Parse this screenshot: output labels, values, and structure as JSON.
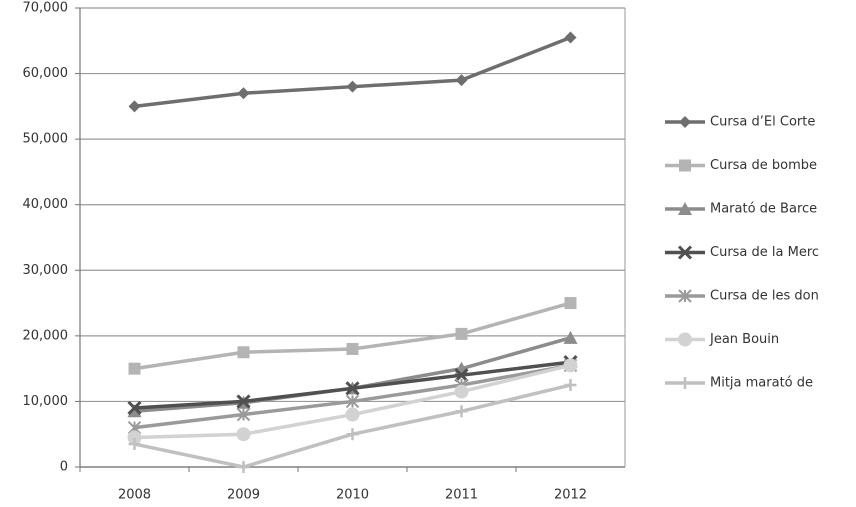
{
  "chart_data": {
    "type": "line",
    "categories": [
      "2008",
      "2009",
      "2010",
      "2011",
      "2012"
    ],
    "series": [
      {
        "name": "Cursa d’El Corte",
        "color": "#6e6e6e",
        "marker": "diamond",
        "values": [
          55000,
          57000,
          58000,
          59000,
          65500
        ]
      },
      {
        "name": "Cursa de bombe",
        "color": "#b4b4b4",
        "marker": "square",
        "values": [
          15000,
          17500,
          18000,
          20300,
          25000
        ]
      },
      {
        "name": "Marató de Barce",
        "color": "#8c8c8c",
        "marker": "triangle",
        "values": [
          8500,
          9800,
          12000,
          15000,
          19700
        ]
      },
      {
        "name": "Cursa de la Merc",
        "color": "#505050",
        "marker": "x",
        "values": [
          9000,
          10000,
          12000,
          14000,
          16000
        ]
      },
      {
        "name": "Cursa de les don",
        "color": "#9a9a9a",
        "marker": "star",
        "values": [
          6000,
          8000,
          10000,
          12500,
          15500
        ]
      },
      {
        "name": "Jean Bouin",
        "color": "#d2d2d2",
        "marker": "circle",
        "values": [
          4500,
          5000,
          8000,
          11500,
          15500
        ]
      },
      {
        "name": "Mitja marató de",
        "color": "#c0c0c0",
        "marker": "plus",
        "values": [
          3500,
          0,
          5000,
          8500,
          12500
        ]
      }
    ],
    "ylim": [
      0,
      70000
    ],
    "yticks": [
      0,
      {
        "value": 10000,
        "label": "10,000"
      },
      {
        "value": 20000,
        "label": "20,000"
      },
      {
        "value": 30000,
        "label": "30,000"
      },
      {
        "value": 40000,
        "label": "40,000"
      },
      {
        "value": 50000,
        "label": "50,000"
      },
      {
        "value": 60000,
        "label": "60,000"
      },
      {
        "value": 70000,
        "label": "70,000"
      }
    ],
    "grid": true
  }
}
